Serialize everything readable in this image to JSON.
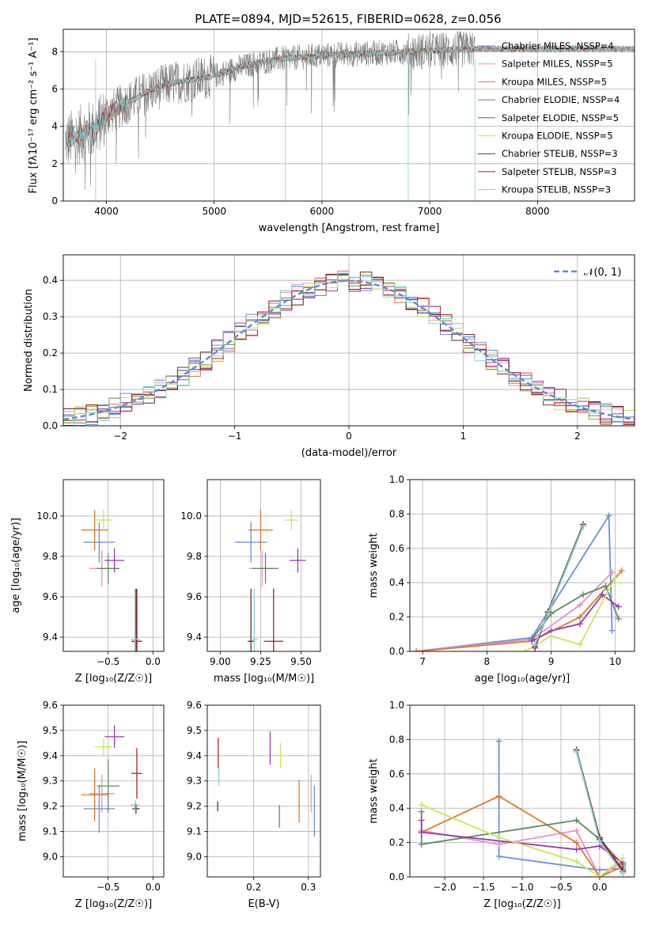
{
  "title": "PLATE=0894, MJD=52615, FIBERID=0628, z=0.056",
  "colors": [
    "#6a8fd8",
    "#e58fc8",
    "#e0782a",
    "#5f8a5f",
    "#9b38b0",
    "#c6e85a",
    "#5a2f2f",
    "#b01e1e",
    "#7fd6d6"
  ],
  "chart_data": [
    {
      "type": "line",
      "id": "spectrum",
      "xlabel": "wavelength [Angstrom, rest frame]",
      "ylabel": "Flux [f",
      "ylabel_full": "Flux [fλ10⁻¹⁷ erg cm⁻² s⁻¹ A⁻¹]",
      "xlim": [
        3600,
        8900
      ],
      "ylim": [
        0,
        9.2
      ],
      "xticks": [
        "4000",
        "5000",
        "6000",
        "7000",
        "8000"
      ],
      "xtick_vals": [
        4000,
        5000,
        6000,
        7000,
        8000
      ],
      "yticks": [
        "0",
        "2",
        "4",
        "6",
        "8"
      ],
      "ytick_vals": [
        0,
        2,
        4,
        6,
        8
      ],
      "legend": [
        "Chabrier MILES, NSSP=4",
        "Salpeter MILES, NSSP=5",
        "Kroupa MILES, NSSP=5",
        "Chabrier ELODIE, NSSP=4",
        "Salpeter ELODIE, NSSP=5",
        "Kroupa ELODIE, NSSP=5",
        "Chabrier STELIB, NSSP=3",
        "Salpeter STELIB, NSSP=3",
        "Kroupa STELIB, NSSP=3"
      ],
      "data_color": "#808080",
      "continuum": {
        "x": [
          3620,
          3700,
          3800,
          3900,
          4000,
          4200,
          4400,
          4600,
          4800,
          5000,
          5200,
          5400,
          5600,
          5800,
          6000,
          6200,
          6400,
          6600,
          6800,
          7000,
          7200,
          7420
        ],
        "y": [
          3.2,
          3.4,
          3.7,
          3.9,
          4.6,
          5.3,
          5.9,
          6.3,
          6.5,
          6.7,
          7.1,
          7.4,
          7.6,
          7.7,
          7.8,
          7.85,
          7.9,
          7.95,
          8.0,
          8.05,
          8.1,
          8.15
        ]
      }
    },
    {
      "type": "step",
      "id": "residuals",
      "xlabel": "(data-model)/error",
      "ylabel": "Normed distribution",
      "xlim": [
        -2.5,
        2.5
      ],
      "ylim": [
        0,
        0.47
      ],
      "xticks": [
        "−2",
        "−1",
        "0",
        "1",
        "2"
      ],
      "xtick_vals": [
        -2,
        -1,
        0,
        1,
        2
      ],
      "yticks": [
        "0.0",
        "0.1",
        "0.2",
        "0.3",
        "0.4"
      ],
      "ytick_vals": [
        0,
        0.1,
        0.2,
        0.3,
        0.4
      ],
      "legend": [
        "𝒩(0, 1)"
      ],
      "gaussian": {
        "mu": 0,
        "sigma": 1
      }
    },
    {
      "type": "scatter",
      "id": "age-vs-Z",
      "xlabel": "Z [log₁₀(Z/Z☉)]",
      "ylabel": "age  [log₁₀(age/yr)]",
      "xlim": [
        -1.0,
        0.12
      ],
      "ylim": [
        9.33,
        10.18
      ],
      "xticks": [
        "−0.5",
        "0.0"
      ],
      "xtick_vals": [
        -0.5,
        0.0
      ],
      "yticks": [
        "9.4",
        "9.6",
        "9.8",
        "10.0"
      ],
      "ytick_vals": [
        9.4,
        9.6,
        9.8,
        10.0
      ],
      "points": [
        {
          "x": -0.6,
          "y": 9.87,
          "dx": 0.35,
          "dy": 0.2,
          "c": 0
        },
        {
          "x": -0.57,
          "y": 9.74,
          "dx": 0.28,
          "dy": 0.18,
          "c": 1
        },
        {
          "x": -0.65,
          "y": 9.93,
          "dx": 0.3,
          "dy": 0.2,
          "c": 2
        },
        {
          "x": -0.5,
          "y": 9.74,
          "dx": 0.25,
          "dy": 0.15,
          "c": 3
        },
        {
          "x": -0.43,
          "y": 9.78,
          "dx": 0.22,
          "dy": 0.12,
          "c": 4
        },
        {
          "x": -0.55,
          "y": 9.98,
          "dx": 0.2,
          "dy": 0.1,
          "c": 5
        },
        {
          "x": -0.19,
          "y": 9.38,
          "dx": 0.08,
          "dy": 0.52,
          "c": 6
        },
        {
          "x": -0.18,
          "y": 9.38,
          "dx": 0.12,
          "dy": 0.52,
          "c": 7
        },
        {
          "x": -0.2,
          "y": 9.39,
          "dx": 0.1,
          "dy": 0.5,
          "c": 8
        }
      ]
    },
    {
      "type": "scatter",
      "id": "age-vs-mass",
      "xlabel": "mass [log₁₀(M/M☉)]",
      "ylabel": "",
      "xlim": [
        8.92,
        9.62
      ],
      "ylim": [
        9.33,
        10.18
      ],
      "xticks": [
        "9.00",
        "9.25",
        "9.50"
      ],
      "xtick_vals": [
        9.0,
        9.25,
        9.5
      ],
      "yticks": [
        "9.4",
        "9.6",
        "9.8",
        "10.0"
      ],
      "ytick_vals": [
        9.4,
        9.6,
        9.8,
        10.0
      ],
      "points": [
        {
          "x": 9.19,
          "y": 9.87,
          "dx": 0.2,
          "dy": 0.2,
          "c": 0
        },
        {
          "x": 9.26,
          "y": 9.74,
          "dx": 0.16,
          "dy": 0.18,
          "c": 1
        },
        {
          "x": 9.25,
          "y": 9.93,
          "dx": 0.15,
          "dy": 0.2,
          "c": 2
        },
        {
          "x": 9.28,
          "y": 9.74,
          "dx": 0.16,
          "dy": 0.15,
          "c": 3
        },
        {
          "x": 9.48,
          "y": 9.78,
          "dx": 0.1,
          "dy": 0.12,
          "c": 4
        },
        {
          "x": 9.44,
          "y": 9.98,
          "dx": 0.08,
          "dy": 0.1,
          "c": 5
        },
        {
          "x": 9.19,
          "y": 9.38,
          "dx": 0.04,
          "dy": 0.52,
          "c": 6
        },
        {
          "x": 9.33,
          "y": 9.38,
          "dx": 0.12,
          "dy": 0.52,
          "c": 7
        },
        {
          "x": 9.21,
          "y": 9.39,
          "dx": 0.04,
          "dy": 0.5,
          "c": 8
        }
      ]
    },
    {
      "type": "line",
      "id": "weight-vs-age",
      "xlabel": "age  [log₁₀(age/yr)]",
      "ylabel": "mass weight",
      "xlim": [
        6.8,
        10.3
      ],
      "ylim": [
        0,
        1.0
      ],
      "xticks": [
        "7",
        "8",
        "9",
        "10"
      ],
      "xtick_vals": [
        7,
        8,
        9,
        10
      ],
      "yticks": [
        "0.0",
        "0.2",
        "0.4",
        "0.6",
        "0.8",
        "1.0"
      ],
      "ytick_vals": [
        0,
        0.2,
        0.4,
        0.6,
        0.8,
        1.0
      ],
      "series": [
        {
          "c": 0,
          "x": [
            6.9,
            8.7,
            9.9,
            9.95
          ],
          "y": [
            0.0,
            0.08,
            0.79,
            0.12
          ]
        },
        {
          "c": 1,
          "x": [
            6.9,
            8.7,
            9.45,
            9.95
          ],
          "y": [
            0.0,
            0.07,
            0.27,
            0.46
          ]
        },
        {
          "c": 2,
          "x": [
            6.9,
            8.7,
            9.45,
            10.1
          ],
          "y": [
            0.0,
            0.06,
            0.2,
            0.47
          ]
        },
        {
          "c": 3,
          "x": [
            8.7,
            9.0,
            9.5,
            9.85,
            10.05
          ],
          "y": [
            0.07,
            0.22,
            0.33,
            0.38,
            0.19
          ]
        },
        {
          "c": 4,
          "x": [
            8.7,
            9.0,
            9.45,
            9.8,
            10.05
          ],
          "y": [
            0.06,
            0.12,
            0.16,
            0.33,
            0.26
          ]
        },
        {
          "c": 5,
          "x": [
            8.6,
            9.0,
            9.45,
            10.0
          ],
          "y": [
            0.0,
            0.09,
            0.04,
            0.43
          ]
        },
        {
          "c": 6,
          "x": [
            8.75,
            8.95,
            9.5
          ],
          "y": [
            0.02,
            0.23,
            0.74
          ]
        },
        {
          "c": 7,
          "x": [
            8.75,
            8.95,
            9.5
          ],
          "y": [
            0.03,
            0.22,
            0.73
          ]
        },
        {
          "c": 8,
          "x": [
            8.75,
            8.95,
            9.5
          ],
          "y": [
            0.04,
            0.22,
            0.73
          ]
        }
      ]
    },
    {
      "type": "scatter",
      "id": "mass-vs-Z",
      "xlabel": "Z [log₁₀(Z/Z☉)]",
      "ylabel": "mass [log₁₀(M/M☉)]",
      "xlim": [
        -1.0,
        0.12
      ],
      "ylim": [
        8.92,
        9.6
      ],
      "xticks": [
        "−0.5",
        "0.0"
      ],
      "xtick_vals": [
        -0.5,
        0.0
      ],
      "yticks": [
        "9.0",
        "9.1",
        "9.2",
        "9.3",
        "9.4",
        "9.5",
        "9.6"
      ],
      "ytick_vals": [
        9.0,
        9.1,
        9.2,
        9.3,
        9.4,
        9.5,
        9.6
      ],
      "points": [
        {
          "x": -0.6,
          "y": 9.19,
          "dx": 0.35,
          "dy": 0.19,
          "c": 0
        },
        {
          "x": -0.57,
          "y": 9.25,
          "dx": 0.28,
          "dy": 0.15,
          "c": 1
        },
        {
          "x": -0.65,
          "y": 9.245,
          "dx": 0.3,
          "dy": 0.21,
          "c": 2
        },
        {
          "x": -0.5,
          "y": 9.28,
          "dx": 0.25,
          "dy": 0.21,
          "c": 3
        },
        {
          "x": -0.43,
          "y": 9.475,
          "dx": 0.22,
          "dy": 0.09,
          "c": 4
        },
        {
          "x": -0.55,
          "y": 9.435,
          "dx": 0.2,
          "dy": 0.07,
          "c": 5
        },
        {
          "x": -0.19,
          "y": 9.19,
          "dx": 0.08,
          "dy": 0.04,
          "c": 6
        },
        {
          "x": -0.18,
          "y": 9.33,
          "dx": 0.12,
          "dy": 0.2,
          "c": 7
        },
        {
          "x": -0.2,
          "y": 9.205,
          "dx": 0.1,
          "dy": 0.04,
          "c": 8
        }
      ]
    },
    {
      "type": "scatter",
      "id": "mass-vs-ebv",
      "xlabel": "E(B-V)",
      "ylabel": "",
      "xlim": [
        0.115,
        0.322
      ],
      "ylim": [
        8.92,
        9.6
      ],
      "xticks": [
        "0.2",
        "0.3"
      ],
      "xtick_vals": [
        0.2,
        0.3
      ],
      "yticks": [
        "9.0",
        "9.1",
        "9.2",
        "9.3",
        "9.4",
        "9.5",
        "9.6"
      ],
      "ytick_vals": [
        9.0,
        9.1,
        9.2,
        9.3,
        9.4,
        9.5,
        9.6
      ],
      "points": [
        {
          "x": 0.311,
          "y": 9.18,
          "dx": 0,
          "dy": 0.2,
          "c": 0
        },
        {
          "x": 0.305,
          "y": 9.25,
          "dx": 0,
          "dy": 0.15,
          "c": 1
        },
        {
          "x": 0.283,
          "y": 9.22,
          "dx": 0,
          "dy": 0.17,
          "c": 2
        },
        {
          "x": 0.247,
          "y": 9.16,
          "dx": 0,
          "dy": 0.09,
          "c": 3
        },
        {
          "x": 0.23,
          "y": 9.43,
          "dx": 0,
          "dy": 0.13,
          "c": 4
        },
        {
          "x": 0.249,
          "y": 9.4,
          "dx": 0,
          "dy": 0.1,
          "c": 5
        },
        {
          "x": 0.134,
          "y": 9.2,
          "dx": 0,
          "dy": 0.04,
          "c": 6
        },
        {
          "x": 0.135,
          "y": 9.41,
          "dx": 0,
          "dy": 0.12,
          "c": 7
        },
        {
          "x": 0.136,
          "y": 9.32,
          "dx": 0,
          "dy": 0.08,
          "c": 8
        }
      ]
    },
    {
      "type": "line",
      "id": "weight-vs-Z",
      "xlabel": "Z [log₁₀(Z/Z☉)]",
      "ylabel": "mass weight",
      "xlim": [
        -2.45,
        0.45
      ],
      "ylim": [
        0,
        1.0
      ],
      "xticks": [
        "−2.0",
        "−1.5",
        "−1.0",
        "−0.5",
        "0.0"
      ],
      "xtick_vals": [
        -2,
        -1.5,
        -1,
        -0.5,
        0
      ],
      "yticks": [
        "0.0",
        "0.2",
        "0.4",
        "0.6",
        "0.8",
        "1.0"
      ],
      "ytick_vals": [
        0,
        0.2,
        0.4,
        0.6,
        0.8,
        1.0
      ],
      "series": [
        {
          "c": 0,
          "x": [
            -1.3,
            -1.3,
            0.0,
            0.3
          ],
          "y": [
            0.79,
            0.12,
            0.04,
            0.05
          ]
        },
        {
          "c": 1,
          "x": [
            -2.3,
            -1.3,
            -0.3,
            0.0,
            0.3
          ],
          "y": [
            0.27,
            0.19,
            0.27,
            0.0,
            0.09
          ]
        },
        {
          "c": 2,
          "x": [
            -2.3,
            -1.3,
            -0.3,
            0.0,
            0.3
          ],
          "y": [
            0.26,
            0.47,
            0.2,
            0.0,
            0.06
          ]
        },
        {
          "c": 3,
          "x": [
            -2.3,
            -2.3,
            -0.3,
            0.0,
            0.3
          ],
          "y": [
            0.38,
            0.19,
            0.33,
            0.22,
            0.07
          ]
        },
        {
          "c": 4,
          "x": [
            -2.3,
            -2.3,
            -0.3,
            0.0,
            0.3
          ],
          "y": [
            0.33,
            0.26,
            0.16,
            0.18,
            0.08
          ]
        },
        {
          "c": 5,
          "x": [
            -2.3,
            -1.3,
            -0.3,
            0.0,
            0.3
          ],
          "y": [
            0.42,
            0.23,
            0.09,
            0.0,
            0.11
          ]
        },
        {
          "c": 6,
          "x": [
            -0.3,
            0.0,
            0.3
          ],
          "y": [
            0.74,
            0.23,
            0.03
          ]
        },
        {
          "c": 7,
          "x": [
            -0.3,
            0.0,
            0.3
          ],
          "y": [
            0.73,
            0.22,
            0.04
          ]
        },
        {
          "c": 8,
          "x": [
            -0.3,
            0.0,
            0.3
          ],
          "y": [
            0.73,
            0.21,
            0.02
          ]
        }
      ]
    }
  ]
}
